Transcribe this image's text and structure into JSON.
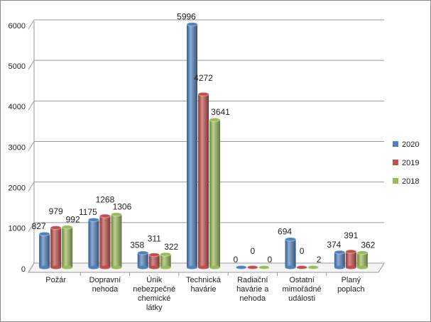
{
  "chart_data": {
    "type": "bar",
    "categories": [
      "Požár",
      "Dopravní nehoda",
      "Únik nebezpečné chemické látky",
      "Technická havárie",
      "Radiační havárie a nehoda",
      "Ostatní mimořádné události",
      "Planý poplach"
    ],
    "series": [
      {
        "name": "2020",
        "color": "#4f81bd",
        "label_color": "#2e75b6",
        "values": [
          827,
          1175,
          358,
          5996,
          0,
          694,
          374
        ]
      },
      {
        "name": "2019",
        "color": "#c0504d",
        "label_color": "#e02020",
        "values": [
          979,
          1268,
          311,
          4272,
          0,
          0,
          391
        ]
      },
      {
        "name": "2018",
        "color": "#9bbb59",
        "label_color": "#00a050",
        "values": [
          992,
          1306,
          322,
          3641,
          0,
          2,
          362
        ]
      }
    ],
    "ylim": [
      0,
      6000
    ],
    "yticks": [
      0,
      1000,
      2000,
      3000,
      4000,
      5000,
      6000
    ],
    "grid": true,
    "legend": "right"
  }
}
